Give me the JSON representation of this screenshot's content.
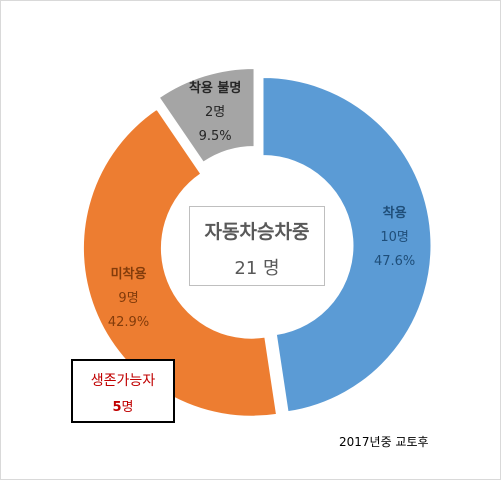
{
  "chart_data": {
    "type": "pie",
    "donut": true,
    "legend": "none",
    "start_at_top": true,
    "slices": [
      {
        "label": "착용",
        "count_text": "10명",
        "percent_text": "47.6%",
        "value": 10,
        "color": "#5b9bd5",
        "label_color": "#1f4e79"
      },
      {
        "label": "미착용",
        "count_text": "9명",
        "percent_text": "42.9%",
        "value": 9,
        "color": "#ed7d31",
        "label_color": "#833c0b"
      },
      {
        "label": "착용 불명",
        "count_text": "2명",
        "percent_text": "9.5%",
        "value": 2,
        "color": "#a5a5a5",
        "label_color": "#262626"
      }
    ],
    "center": {
      "title": "자동차승차중",
      "total": "21 명"
    }
  },
  "callout": {
    "label": "생존가능자",
    "value": "5",
    "unit": "명"
  },
  "note": "2017년중 교토후"
}
